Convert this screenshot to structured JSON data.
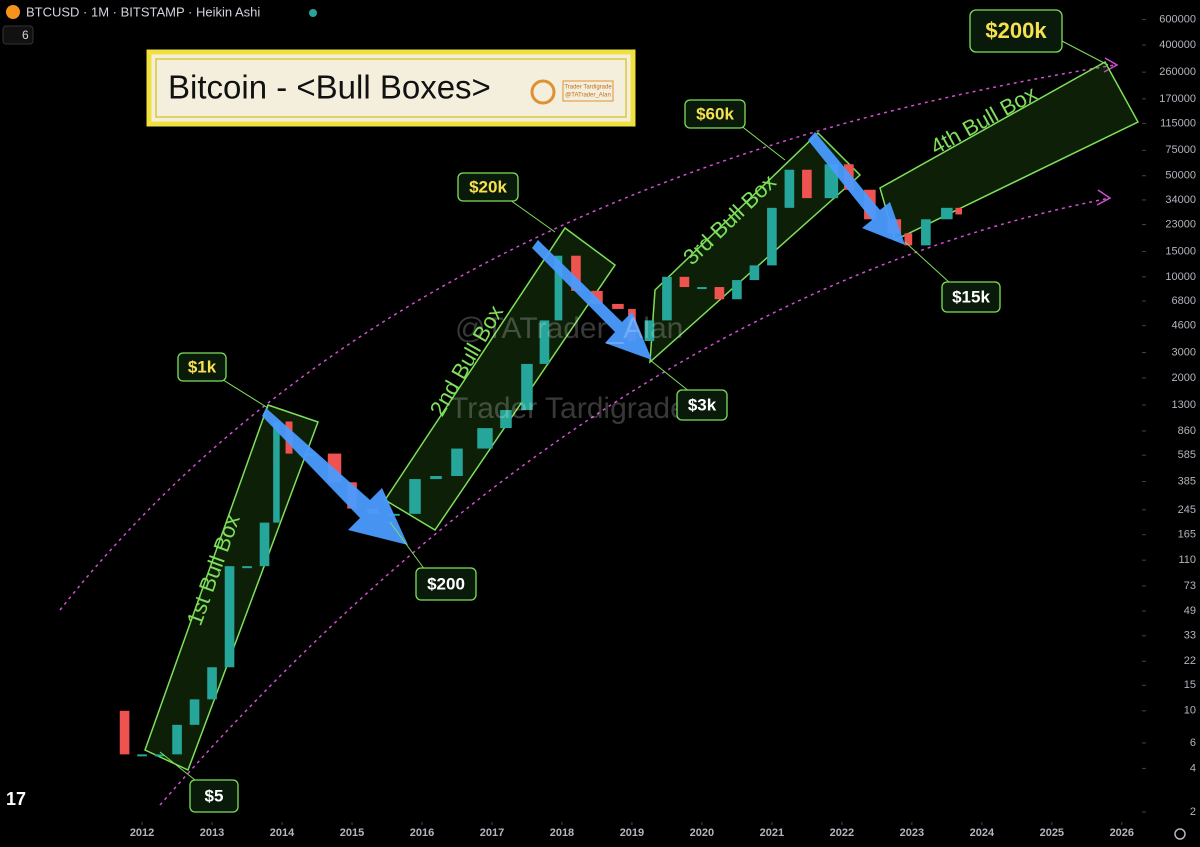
{
  "header": {
    "symbol": "BTCUSD · 1M · BITSTAMP · Heikin Ashi",
    "interval_badge": "6"
  },
  "title_box": {
    "title": "Bitcoin - <Bull Boxes>",
    "logo_name": "Trader Tardigrade",
    "logo_handle": "@TATrader_Alan"
  },
  "watermark": {
    "handle": "@TATrader_Alan",
    "name": "Trader Tardigrade"
  },
  "box_labels": [
    "1st Bull Box",
    "2nd Bull Box",
    "3rd Bull Box",
    "4th Bull Box"
  ],
  "callouts": [
    "$200k",
    "$60k",
    "$20k",
    "$1k",
    "$3k",
    "$15k",
    "$200",
    "$5"
  ],
  "chart_data": {
    "type": "candlestick",
    "log_scale": true,
    "up_color": "#26a69a",
    "down_color": "#ef5350",
    "x": [
      2011.5,
      2011.75,
      2012.0,
      2012.25,
      2012.5,
      2012.75,
      2013.0,
      2013.25,
      2013.5,
      2013.75,
      2013.92,
      2014.1,
      2014.4,
      2014.75,
      2015.0,
      2015.3,
      2015.6,
      2015.9,
      2016.2,
      2016.5,
      2016.9,
      2017.2,
      2017.5,
      2017.75,
      2017.95,
      2018.2,
      2018.5,
      2018.8,
      2019.0,
      2019.25,
      2019.5,
      2019.75,
      2020.0,
      2020.25,
      2020.5,
      2020.75,
      2021.0,
      2021.25,
      2021.5,
      2021.85,
      2022.1,
      2022.4,
      2022.75,
      2022.95,
      2023.2,
      2023.5,
      2023.67
    ],
    "values": [
      10,
      5,
      5,
      5,
      8,
      12,
      20,
      100,
      100,
      200,
      1000,
      600,
      600,
      380,
      250,
      230,
      230,
      400,
      420,
      650,
      900,
      1200,
      2500,
      5000,
      14000,
      8000,
      6500,
      6000,
      3600,
      5000,
      10000,
      8500,
      8500,
      7000,
      9500,
      12000,
      30000,
      55000,
      35000,
      60000,
      40000,
      25000,
      20000,
      16500,
      25000,
      30000,
      27000
    ],
    "xlim": [
      2009.97,
      2026.26
    ],
    "xticks": [
      2012,
      2013,
      2014,
      2015,
      2016,
      2017,
      2018,
      2019,
      2020,
      2021,
      2022,
      2023,
      2024,
      2025,
      2026
    ],
    "ylim": [
      1.5,
      820000
    ],
    "yticks": [
      600000,
      400000,
      260000,
      170000,
      115000,
      75000,
      50000,
      34000,
      23000,
      15000,
      10000,
      6800,
      4600,
      3000,
      2000,
      1300,
      860,
      585,
      385,
      245,
      165,
      110,
      73,
      49,
      33,
      22,
      15,
      10,
      6,
      4,
      2
    ]
  }
}
